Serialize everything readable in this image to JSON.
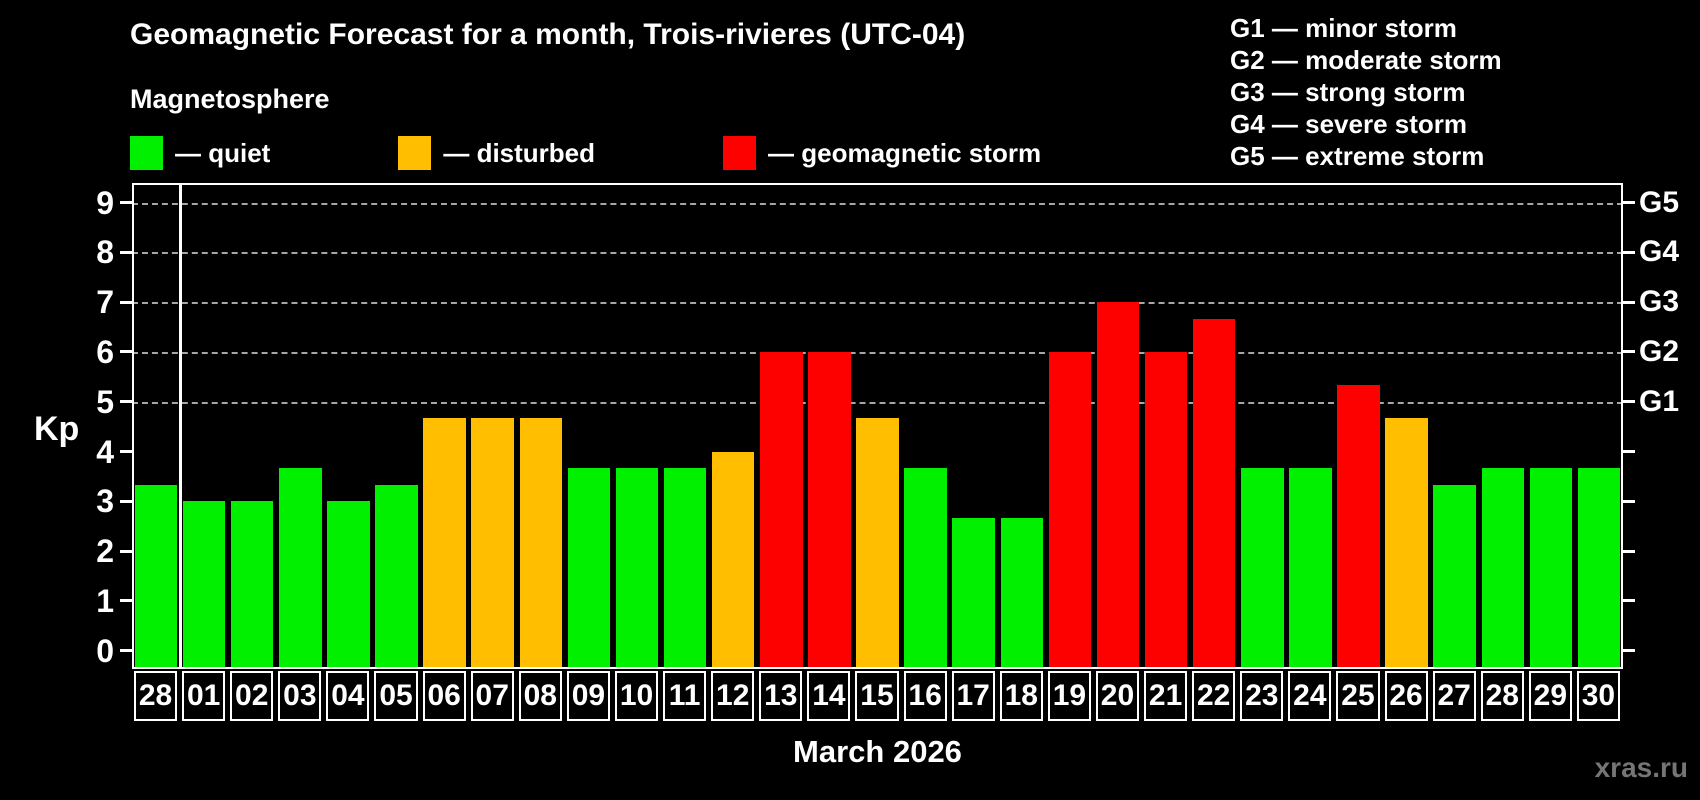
{
  "header": {
    "title": "Geomagnetic Forecast for a month, Trois-rivieres (UTC-04)"
  },
  "g_scale": {
    "items": [
      {
        "text": "G1 — minor storm"
      },
      {
        "text": "G2 — moderate storm"
      },
      {
        "text": "G3 — strong storm"
      },
      {
        "text": "G4 — severe storm"
      },
      {
        "text": "G5 — extreme storm"
      }
    ]
  },
  "legend": {
    "title": "Magnetosphere",
    "items": [
      {
        "name": "quiet",
        "label": "— quiet",
        "color": "#00f000"
      },
      {
        "name": "disturbed",
        "label": "— disturbed",
        "color": "#ffbe00"
      },
      {
        "name": "storm",
        "label": "— geomagnetic storm",
        "color": "#fd0000"
      }
    ]
  },
  "y_axis": {
    "label": "Kp",
    "ticks": [
      0,
      1,
      2,
      3,
      4,
      5,
      6,
      7,
      8,
      9
    ]
  },
  "right_axis": {
    "labels": [
      {
        "text": "G1",
        "kp": 5
      },
      {
        "text": "G2",
        "kp": 6
      },
      {
        "text": "G3",
        "kp": 7
      },
      {
        "text": "G4",
        "kp": 8
      },
      {
        "text": "G5",
        "kp": 9
      }
    ]
  },
  "x_axis": {
    "month_label": "March 2026"
  },
  "watermark": "xras.ru",
  "colors": {
    "background": "#000000",
    "axis": "#ffffff",
    "grid": "#a6a6a6",
    "text": "#ffffff",
    "quiet": "#00f000",
    "disturbed": "#ffbe00",
    "storm": "#fd0000",
    "watermark": "#757575"
  },
  "chart_data": {
    "type": "bar",
    "title": "Geomagnetic Forecast for a month, Trois-rivieres (UTC-04)",
    "ylabel": "Kp",
    "ylim": [
      -0.37,
      9.39
    ],
    "grid": "dashed horizontal at Kp 5-9 (G1-G5 levels)",
    "legend_position": "top-left",
    "gridlines_kp": [
      5,
      6,
      7,
      8,
      9
    ],
    "separator_after_index": 0,
    "categories": [
      "28",
      "01",
      "02",
      "03",
      "04",
      "05",
      "06",
      "07",
      "08",
      "09",
      "10",
      "11",
      "12",
      "13",
      "14",
      "15",
      "16",
      "17",
      "18",
      "19",
      "20",
      "21",
      "22",
      "23",
      "24",
      "25",
      "26",
      "27",
      "28",
      "29",
      "30"
    ],
    "values": [
      3.33,
      3.0,
      3.0,
      3.67,
      3.0,
      3.33,
      4.67,
      4.67,
      4.67,
      3.67,
      3.67,
      3.67,
      4.0,
      6.0,
      6.0,
      4.67,
      3.67,
      2.67,
      2.67,
      6.0,
      7.0,
      6.0,
      6.67,
      3.67,
      3.67,
      5.33,
      4.67,
      3.33,
      3.67,
      3.67,
      3.67
    ],
    "statuses": [
      "quiet",
      "quiet",
      "quiet",
      "quiet",
      "quiet",
      "quiet",
      "disturbed",
      "disturbed",
      "disturbed",
      "quiet",
      "quiet",
      "quiet",
      "disturbed",
      "storm",
      "storm",
      "disturbed",
      "quiet",
      "quiet",
      "quiet",
      "storm",
      "storm",
      "storm",
      "storm",
      "quiet",
      "quiet",
      "storm",
      "disturbed",
      "quiet",
      "quiet",
      "quiet",
      "quiet"
    ]
  }
}
